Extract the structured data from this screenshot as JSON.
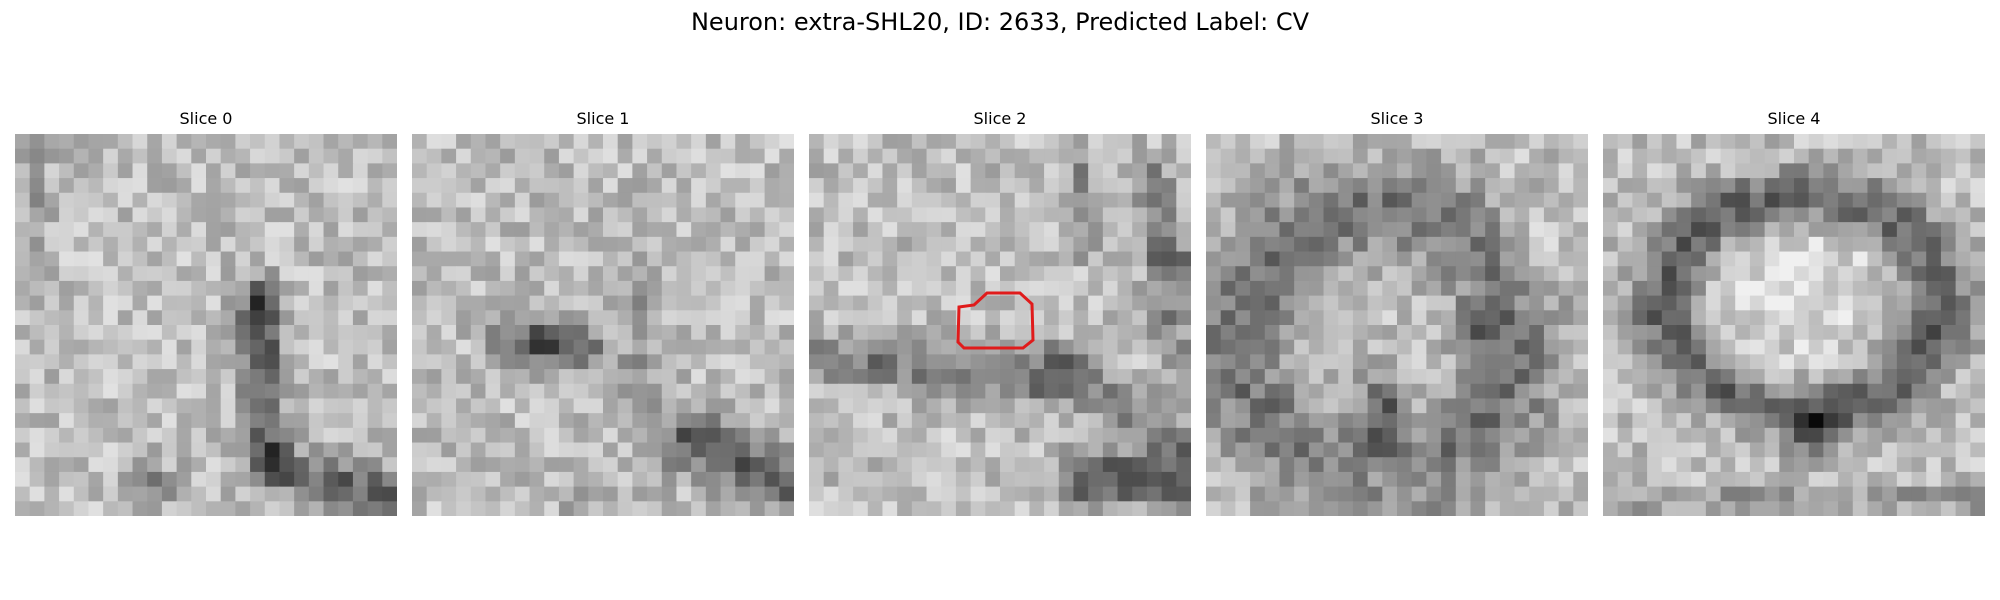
{
  "figure": {
    "title": "Neuron: extra-SHL20, ID: 2633, Predicted Label: CV"
  },
  "panels": [
    {
      "title": "Slice 0",
      "has_contour": false
    },
    {
      "title": "Slice 1",
      "has_contour": false
    },
    {
      "title": "Slice 2",
      "has_contour": true
    },
    {
      "title": "Slice 3",
      "has_contour": false
    },
    {
      "title": "Slice 4",
      "has_contour": false
    }
  ],
  "colors": {
    "contour": "#e01b1b",
    "colormap": "grayscale"
  }
}
